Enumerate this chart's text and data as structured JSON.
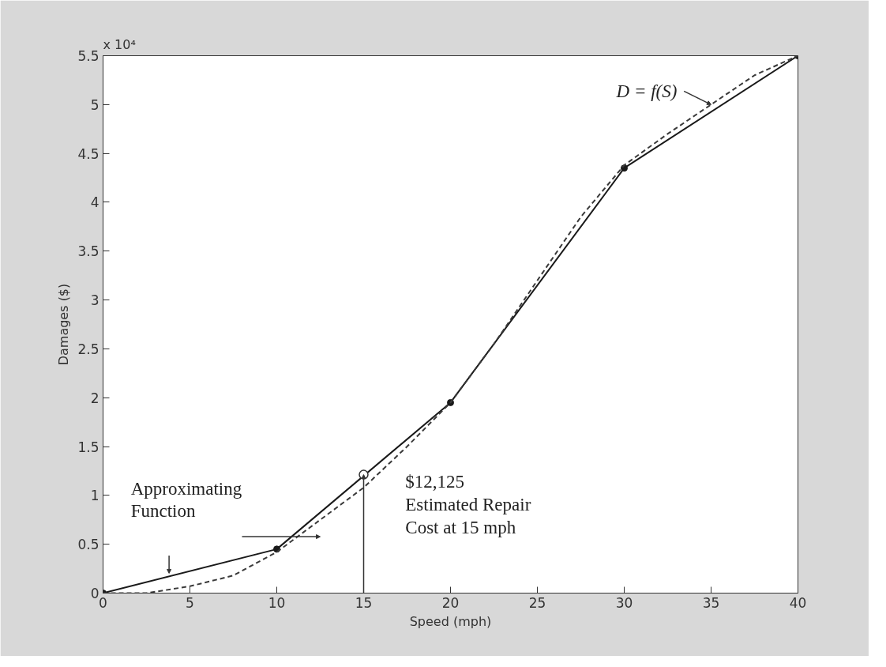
{
  "chart_data": {
    "type": "line",
    "xlabel": "Speed (mph)",
    "ylabel": "Damages ($)",
    "xlim": [
      0,
      40
    ],
    "xticks": [
      0,
      5,
      10,
      15,
      20,
      25,
      30,
      35,
      40
    ],
    "ylim": [
      0,
      5.5
    ],
    "yticks": [
      0,
      0.5,
      1,
      1.5,
      2,
      2.5,
      3,
      3.5,
      4,
      4.5,
      5,
      5.5
    ],
    "grid": false,
    "legend": "top right",
    "series": [
      {
        "name": "Approximating Function",
        "color": "#1a1a1a",
        "marker": "circle",
        "line_style": "solid",
        "x": [
          0,
          10,
          20,
          30,
          40
        ],
        "values": [
          0,
          0.45,
          1.95,
          4.35,
          5.5
        ]
      },
      {
        "name": "D = f(S)",
        "color": "#3a3a3a",
        "marker": "none",
        "line_style": "dashed",
        "x": [
          0,
          2.5,
          5,
          7.5,
          10,
          12.5,
          15,
          17.5,
          20,
          22.5,
          25,
          27.5,
          30,
          32.5,
          35,
          37.5,
          40
        ],
        "values": [
          0,
          0,
          0.07,
          0.18,
          0.42,
          0.75,
          1.08,
          1.5,
          1.95,
          2.55,
          3.2,
          3.85,
          4.38,
          4.7,
          5.0,
          5.3,
          5.5
        ]
      }
    ],
    "annotations": [
      "x 10⁴",
      {
        "text": "$12,125\nEstimated Repair\nCost at 15 mph",
        "x": 15,
        "y": 1.2125
      }
    ]
  }
}
